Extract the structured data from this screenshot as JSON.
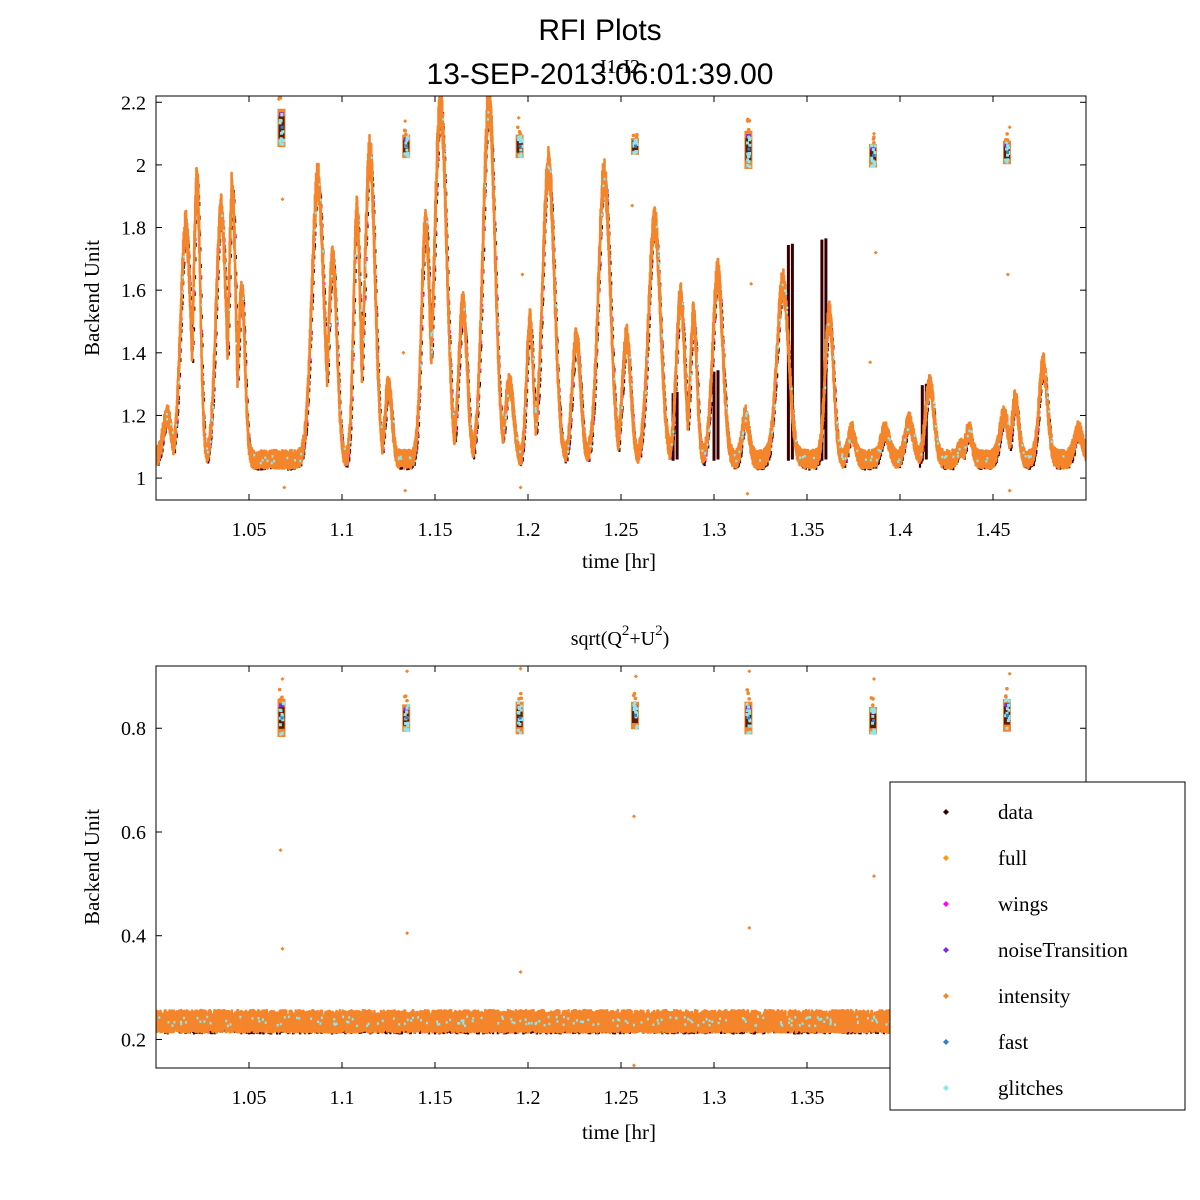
{
  "figure": {
    "title_line1": "RFI Plots",
    "title_line2": "13-SEP-2013:06:01:39.00"
  },
  "legend": {
    "placement": "bottom-right",
    "entries": [
      {
        "label": "data",
        "color": "#3a0000"
      },
      {
        "label": "full",
        "color": "#ff9900"
      },
      {
        "label": "wings",
        "color": "#ff00ff"
      },
      {
        "label": "noiseTransition",
        "color": "#7a2be2"
      },
      {
        "label": "intensity",
        "color": "#f5852a"
      },
      {
        "label": "fast",
        "color": "#2f7fd0"
      },
      {
        "label": "glitches",
        "color": "#8ae8f0"
      }
    ]
  },
  "chart_data": [
    {
      "type": "scatter",
      "title": "I1-I2",
      "xlabel": "time [hr]",
      "ylabel": "Backend Unit",
      "xlim": [
        1.0,
        1.5
      ],
      "ylim": [
        0.93,
        2.22
      ],
      "xticks": [
        1.05,
        1.1,
        1.15,
        1.2,
        1.25,
        1.3,
        1.35,
        1.4,
        1.45
      ],
      "xtick_labels": [
        "1.05",
        "1.1",
        "1.15",
        "1.2",
        "1.25",
        "1.3",
        "1.35",
        "1.4",
        "1.45"
      ],
      "yticks": [
        1.0,
        1.2,
        1.4,
        1.6,
        1.8,
        2.0,
        2.2
      ],
      "ytick_labels": [
        "1",
        "1.2",
        "1.4",
        "1.6",
        "1.8",
        "2",
        "2.2"
      ],
      "baseline": 1.06,
      "baseline_jitter": 0.025,
      "peaks": [
        {
          "t": 1.006,
          "h": 1.2,
          "w": 0.0025
        },
        {
          "t": 1.016,
          "h": 1.8,
          "w": 0.003
        },
        {
          "t": 1.022,
          "h": 1.95,
          "w": 0.002
        },
        {
          "t": 1.035,
          "h": 1.85,
          "w": 0.003
        },
        {
          "t": 1.041,
          "h": 1.93,
          "w": 0.002
        },
        {
          "t": 1.046,
          "h": 1.6,
          "w": 0.002
        },
        {
          "t": 1.087,
          "h": 1.95,
          "w": 0.0035
        },
        {
          "t": 1.095,
          "h": 1.7,
          "w": 0.0025
        },
        {
          "t": 1.108,
          "h": 1.85,
          "w": 0.002
        },
        {
          "t": 1.115,
          "h": 2.04,
          "w": 0.003
        },
        {
          "t": 1.125,
          "h": 1.3,
          "w": 0.002
        },
        {
          "t": 1.145,
          "h": 1.82,
          "w": 0.0025
        },
        {
          "t": 1.153,
          "h": 2.2,
          "w": 0.0035
        },
        {
          "t": 1.165,
          "h": 1.55,
          "w": 0.0025
        },
        {
          "t": 1.179,
          "h": 2.2,
          "w": 0.0035
        },
        {
          "t": 1.19,
          "h": 1.3,
          "w": 0.0025
        },
        {
          "t": 1.201,
          "h": 1.5,
          "w": 0.002
        },
        {
          "t": 1.211,
          "h": 2.0,
          "w": 0.0035
        },
        {
          "t": 1.226,
          "h": 1.45,
          "w": 0.0025
        },
        {
          "t": 1.241,
          "h": 1.97,
          "w": 0.0035
        },
        {
          "t": 1.253,
          "h": 1.45,
          "w": 0.0025
        },
        {
          "t": 1.268,
          "h": 1.82,
          "w": 0.0035
        },
        {
          "t": 1.282,
          "h": 1.58,
          "w": 0.0025
        },
        {
          "t": 1.289,
          "h": 1.52,
          "w": 0.002
        },
        {
          "t": 1.302,
          "h": 1.65,
          "w": 0.003
        },
        {
          "t": 1.317,
          "h": 1.2,
          "w": 0.002
        },
        {
          "t": 1.337,
          "h": 1.62,
          "w": 0.0035
        },
        {
          "t": 1.362,
          "h": 1.52,
          "w": 0.0025
        },
        {
          "t": 1.374,
          "h": 1.15,
          "w": 0.002
        },
        {
          "t": 1.392,
          "h": 1.15,
          "w": 0.0025
        },
        {
          "t": 1.405,
          "h": 1.18,
          "w": 0.0025
        },
        {
          "t": 1.416,
          "h": 1.3,
          "w": 0.0025
        },
        {
          "t": 1.433,
          "h": 1.1,
          "w": 0.002
        },
        {
          "t": 1.437,
          "h": 1.15,
          "w": 0.002
        },
        {
          "t": 1.456,
          "h": 1.2,
          "w": 0.0025
        },
        {
          "t": 1.462,
          "h": 1.25,
          "w": 0.002
        },
        {
          "t": 1.477,
          "h": 1.36,
          "w": 0.0025
        },
        {
          "t": 1.496,
          "h": 1.15,
          "w": 0.0025
        }
      ],
      "calibration_clusters": [
        {
          "t": 1.0675,
          "y": 2.12,
          "spread": 0.06
        },
        {
          "t": 1.1345,
          "y": 2.06,
          "spread": 0.035
        },
        {
          "t": 1.1955,
          "y": 2.06,
          "spread": 0.035
        },
        {
          "t": 1.2575,
          "y": 2.06,
          "spread": 0.025
        },
        {
          "t": 1.3185,
          "y": 2.05,
          "spread": 0.06
        },
        {
          "t": 1.3855,
          "y": 2.03,
          "spread": 0.035
        },
        {
          "t": 1.4575,
          "y": 2.04,
          "spread": 0.035
        }
      ],
      "data_spikes": [
        {
          "t": 1.34,
          "y_top": 1.74
        },
        {
          "t": 1.358,
          "y_top": 1.76
        },
        {
          "t": 1.3,
          "y_top": 1.34
        },
        {
          "t": 1.412,
          "y_top": 1.3
        },
        {
          "t": 1.278,
          "y_top": 1.27
        }
      ],
      "outliers": [
        {
          "t": 1.066,
          "y": 2.21
        },
        {
          "t": 1.068,
          "y": 1.89
        },
        {
          "t": 1.134,
          "y": 2.14
        },
        {
          "t": 1.195,
          "y": 2.15
        },
        {
          "t": 1.197,
          "y": 1.65
        },
        {
          "t": 1.256,
          "y": 1.87
        },
        {
          "t": 1.318,
          "y": 2.14
        },
        {
          "t": 1.32,
          "y": 1.62
        },
        {
          "t": 1.386,
          "y": 2.1
        },
        {
          "t": 1.387,
          "y": 1.72
        },
        {
          "t": 1.384,
          "y": 1.37
        },
        {
          "t": 1.459,
          "y": 2.12
        },
        {
          "t": 1.458,
          "y": 1.65
        },
        {
          "t": 1.133,
          "y": 1.4
        },
        {
          "t": 1.134,
          "y": 0.96
        },
        {
          "t": 1.196,
          "y": 0.97
        },
        {
          "t": 1.318,
          "y": 0.95
        },
        {
          "t": 1.459,
          "y": 0.96
        },
        {
          "t": 1.069,
          "y": 0.97
        }
      ]
    },
    {
      "type": "scatter",
      "title": "sqrt(Q2+U2)",
      "title_parts": [
        "sqrt(Q",
        "2",
        "+U",
        "2",
        ")"
      ],
      "xlabel": "time [hr]",
      "ylabel": "Backend Unit",
      "xlim": [
        1.0,
        1.5
      ],
      "ylim": [
        0.145,
        0.92
      ],
      "xticks": [
        1.05,
        1.1,
        1.15,
        1.2,
        1.25,
        1.3,
        1.35
      ],
      "xtick_labels": [
        "1.05",
        "1.1",
        "1.15",
        "1.2",
        "1.25",
        "1.3",
        "1.35"
      ],
      "yticks": [
        0.2,
        0.4,
        0.6,
        0.8
      ],
      "ytick_labels": [
        "0.2",
        "0.4",
        "0.6",
        "0.8"
      ],
      "baseline": 0.235,
      "baseline_jitter": 0.018,
      "calibration_clusters": [
        {
          "t": 1.0675,
          "y": 0.82,
          "spread": 0.035
        },
        {
          "t": 1.1345,
          "y": 0.82,
          "spread": 0.025
        },
        {
          "t": 1.1955,
          "y": 0.82,
          "spread": 0.03
        },
        {
          "t": 1.2575,
          "y": 0.825,
          "spread": 0.025
        },
        {
          "t": 1.3185,
          "y": 0.82,
          "spread": 0.03
        },
        {
          "t": 1.3855,
          "y": 0.815,
          "spread": 0.025
        },
        {
          "t": 1.4575,
          "y": 0.825,
          "spread": 0.03
        }
      ],
      "outliers": [
        {
          "t": 1.068,
          "y": 0.895
        },
        {
          "t": 1.067,
          "y": 0.565
        },
        {
          "t": 1.068,
          "y": 0.375
        },
        {
          "t": 1.135,
          "y": 0.91
        },
        {
          "t": 1.135,
          "y": 0.405
        },
        {
          "t": 1.196,
          "y": 0.915
        },
        {
          "t": 1.196,
          "y": 0.33
        },
        {
          "t": 1.257,
          "y": 0.63
        },
        {
          "t": 1.258,
          "y": 0.9
        },
        {
          "t": 1.319,
          "y": 0.91
        },
        {
          "t": 1.319,
          "y": 0.415
        },
        {
          "t": 1.386,
          "y": 0.895
        },
        {
          "t": 1.386,
          "y": 0.515
        },
        {
          "t": 1.459,
          "y": 0.905
        },
        {
          "t": 1.257,
          "y": 0.15
        }
      ]
    }
  ]
}
